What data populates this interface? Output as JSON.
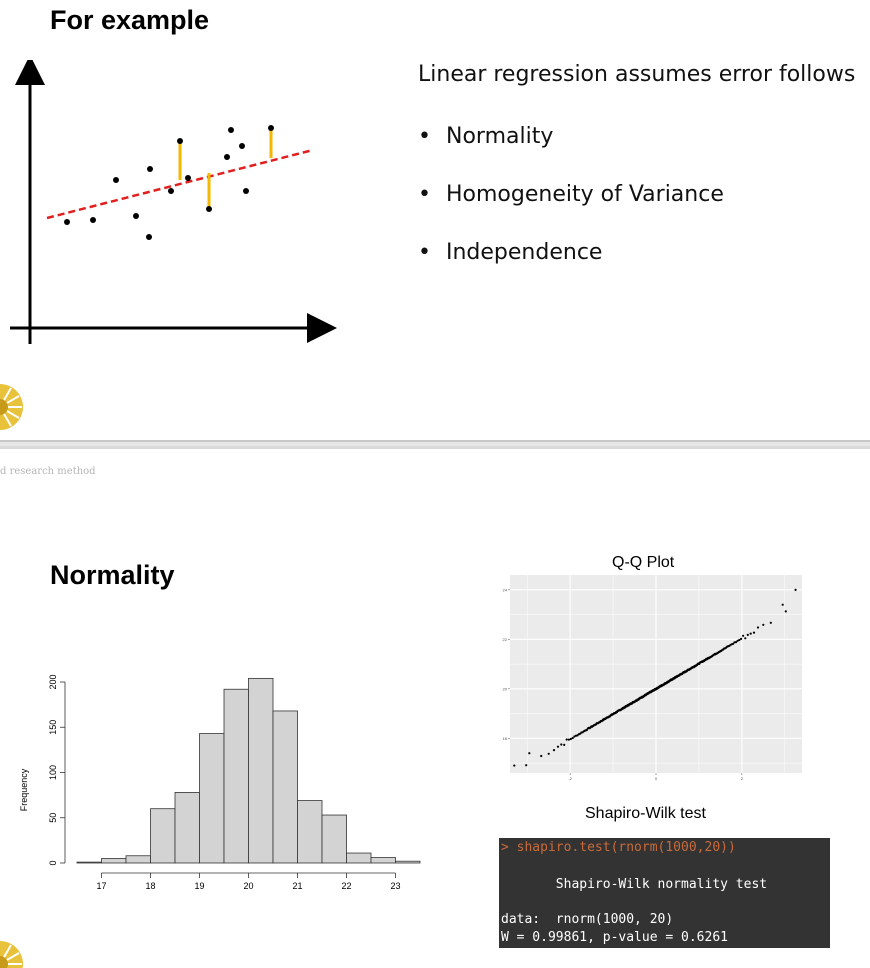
{
  "slide1": {
    "title": "For example",
    "intro": "Linear regression assumes error follows",
    "bullets": [
      "Normality",
      "Homogeneity of Variance",
      "Independence"
    ],
    "bullet_glyph": "•",
    "dot_color": "#000000",
    "line_color": "#e02020",
    "residual_color": "#f5b800"
  },
  "footer": {
    "text": "d research method"
  },
  "slide2": {
    "title": "Normality",
    "qq_title": "Q-Q Plot",
    "shapiro_title": "Shapiro-Wilk test"
  },
  "console": {
    "line1": "> shapiro.test(rnorm(1000,20))",
    "line2": "       Shapiro-Wilk normality test",
    "line3": "data:  rnorm(1000, 20)",
    "line4": "W = 0.99861, p-value = 0.6261"
  },
  "chart_data": [
    {
      "type": "histogram",
      "ylabel": "Frequency",
      "x_ticks": [
        "17",
        "18",
        "19",
        "20",
        "21",
        "22",
        "23"
      ],
      "y_ticks": [
        "0",
        "50",
        "100",
        "150",
        "200"
      ],
      "ylim": [
        0,
        200
      ],
      "bin_edges": [
        16.5,
        17,
        17.5,
        18,
        18.5,
        19,
        19.5,
        20,
        20.5,
        21,
        21.5,
        22,
        22.5,
        23,
        23.5
      ],
      "values": [
        1,
        5,
        8,
        60,
        78,
        143,
        192,
        204,
        168,
        69,
        53,
        11,
        6,
        2
      ],
      "bar_color": "#d3d3d3"
    },
    {
      "type": "scatter",
      "title": "Q-Q Plot",
      "x_ticks": [
        "-2",
        "0",
        "2"
      ],
      "y_ticks": [
        "18",
        "20",
        "22",
        "24"
      ],
      "note": "sample quantiles vs theoretical quantiles, approximately linear",
      "background": "#ebebeb",
      "grid": true
    }
  ]
}
